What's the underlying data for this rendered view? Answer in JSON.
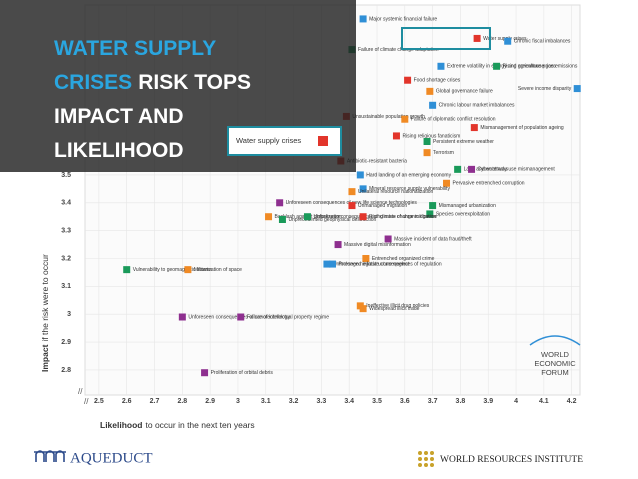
{
  "chart_data": {
    "type": "scatter",
    "title_lines": [
      [
        {
          "text": "WATER SUPPLY",
          "highlight": true
        }
      ],
      [
        {
          "text": "CRISES",
          "highlight": true
        },
        {
          "text": "RISK TOPS",
          "highlight": false
        }
      ],
      [
        {
          "text": "IMPACT AND",
          "highlight": false
        }
      ],
      [
        {
          "text": "LIKELIHOOD",
          "highlight": false
        }
      ]
    ],
    "callout": "Water supply crises",
    "callout_color": "#e2352b",
    "xlabel_strong": "Likelihood",
    "xlabel_rest": "to occur in the next ten years",
    "ylabel_strong": "Impact",
    "ylabel_rest": "if the risk were to occur",
    "xlim": [
      2.45,
      4.23
    ],
    "ylim": [
      2.71,
      4.11
    ],
    "xticks": [
      2.5,
      2.6,
      2.7,
      2.8,
      2.9,
      3,
      3.1,
      3.2,
      3.3,
      3.4,
      3.5,
      3.6,
      3.7,
      3.8,
      3.9,
      4,
      4.1,
      4.2
    ],
    "yticks": [
      2.8,
      2.9,
      3,
      3.1,
      3.2,
      3.3,
      3.4,
      3.5
    ],
    "grid": true,
    "points": [
      {
        "label": "Major systemic financial failure",
        "x": 3.45,
        "y": 4.06,
        "color": "#2f8fd6"
      },
      {
        "label": "Water supply crises",
        "x": 3.86,
        "y": 3.99,
        "color": "#e2352b"
      },
      {
        "label": "Chronic fiscal imbalances",
        "x": 3.97,
        "y": 3.98,
        "color": "#2f8fd6"
      },
      {
        "label": "Failure of climate change adaptation",
        "x": 3.41,
        "y": 3.95,
        "color": "#1a9a5a"
      },
      {
        "label": "Extreme volatility in energy and agriculture prices",
        "x": 3.73,
        "y": 3.89,
        "color": "#2f8fd6"
      },
      {
        "label": "Rising greenhouse gas emissions",
        "x": 3.93,
        "y": 3.89,
        "color": "#1a9a5a"
      },
      {
        "label": "Food shortage crises",
        "x": 3.61,
        "y": 3.84,
        "color": "#e2352b"
      },
      {
        "label": "Global governance failure",
        "x": 3.69,
        "y": 3.8,
        "color": "#f08a24"
      },
      {
        "label": "Severe income disparity",
        "x": 4.22,
        "y": 3.81,
        "color": "#2f8fd6"
      },
      {
        "label": "Chronic labour market imbalances",
        "x": 3.7,
        "y": 3.75,
        "color": "#2f8fd6"
      },
      {
        "label": "Unsustainable population growth",
        "x": 3.39,
        "y": 3.71,
        "color": "#e2352b"
      },
      {
        "label": "Failure of diplomatic conflict resolution",
        "x": 3.6,
        "y": 3.7,
        "color": "#f08a24"
      },
      {
        "label": "Mismanagement of population ageing",
        "x": 3.85,
        "y": 3.67,
        "color": "#e2352b"
      },
      {
        "label": "Rising religious fanaticism",
        "x": 3.57,
        "y": 3.64,
        "color": "#e2352b"
      },
      {
        "label": "Persistent extreme weather",
        "x": 3.68,
        "y": 3.62,
        "color": "#1a9a5a"
      },
      {
        "label": "Terrorism",
        "x": 3.68,
        "y": 3.58,
        "color": "#f08a24"
      },
      {
        "label": "Antibiotic-resistant bacteria",
        "x": 3.37,
        "y": 3.55,
        "color": "#e2352b"
      },
      {
        "label": "Land and waterway use mismanagement",
        "x": 3.79,
        "y": 3.52,
        "color": "#1a9a5a"
      },
      {
        "label": "Cyber attacks",
        "x": 3.84,
        "y": 3.52,
        "color": "#8e2f8f"
      },
      {
        "label": "Hard landing of an emerging economy",
        "x": 3.44,
        "y": 3.5,
        "color": "#2f8fd6"
      },
      {
        "label": "Pervasive entrenched corruption",
        "x": 3.75,
        "y": 3.47,
        "color": "#f08a24"
      },
      {
        "label": "Mineral resource supply vulnerability",
        "x": 3.45,
        "y": 3.45,
        "color": "#2f8fd6"
      },
      {
        "label": "Unilateral resource nationalization",
        "x": 3.41,
        "y": 3.44,
        "color": "#f08a24"
      },
      {
        "label": "Unforeseen consequences of new life science technologies",
        "x": 3.15,
        "y": 3.4,
        "color": "#8e2f8f"
      },
      {
        "label": "Unmanaged migration",
        "x": 3.41,
        "y": 3.39,
        "color": "#e2352b"
      },
      {
        "label": "Mismanaged urbanization",
        "x": 3.7,
        "y": 3.39,
        "color": "#1a9a5a"
      },
      {
        "label": "Species overexploitation",
        "x": 3.69,
        "y": 3.36,
        "color": "#1a9a5a"
      },
      {
        "label": "Backlash against globalization",
        "x": 3.11,
        "y": 3.35,
        "color": "#f08a24"
      },
      {
        "label": "Unprecedented geophysical destruction",
        "x": 3.16,
        "y": 3.34,
        "color": "#1a9a5a"
      },
      {
        "label": "Unforeseen consequences of climate change mitigation",
        "x": 3.25,
        "y": 3.35,
        "color": "#1a9a5a"
      },
      {
        "label": "Rising rates of chronic disease",
        "x": 3.45,
        "y": 3.35,
        "color": "#e2352b"
      },
      {
        "label": "Massive incident of data fraud/theft",
        "x": 3.54,
        "y": 3.27,
        "color": "#8e2f8f"
      },
      {
        "label": "Massive digital misinformation",
        "x": 3.36,
        "y": 3.25,
        "color": "#8e2f8f"
      },
      {
        "label": "Entrenched organized crime",
        "x": 3.46,
        "y": 3.2,
        "color": "#f08a24"
      },
      {
        "label": "Unforeseen negative consequences of regulation",
        "x": 3.32,
        "y": 3.18,
        "color": "#2f8fd6"
      },
      {
        "label": "Prolonged infrastructure neglect",
        "x": 3.34,
        "y": 3.18,
        "color": "#2f8fd6"
      },
      {
        "label": "Vulnerability to geomagnetic storms",
        "x": 2.6,
        "y": 3.16,
        "color": "#1a9a5a"
      },
      {
        "label": "Militarization of space",
        "x": 2.82,
        "y": 3.16,
        "color": "#f08a24"
      },
      {
        "label": "Ineffective illicit drug policies",
        "x": 3.44,
        "y": 3.03,
        "color": "#f08a24"
      },
      {
        "label": "Widespread illicit trade",
        "x": 3.45,
        "y": 3.02,
        "color": "#f08a24"
      },
      {
        "label": "Unforeseen consequences of nanotechnology",
        "x": 2.8,
        "y": 2.99,
        "color": "#8e2f8f"
      },
      {
        "label": "Failure of intellectual property regime",
        "x": 3.01,
        "y": 2.99,
        "color": "#8e2f8f"
      },
      {
        "label": "Proliferation of orbital debris",
        "x": 2.88,
        "y": 2.79,
        "color": "#8e2f8f"
      }
    ]
  },
  "branding": {
    "wef": [
      "WORLD",
      "ECONOMIC",
      "FORUM"
    ],
    "aqueduct": "AQUEDUCT",
    "wri": "WORLD RESOURCES INSTITUTE"
  }
}
